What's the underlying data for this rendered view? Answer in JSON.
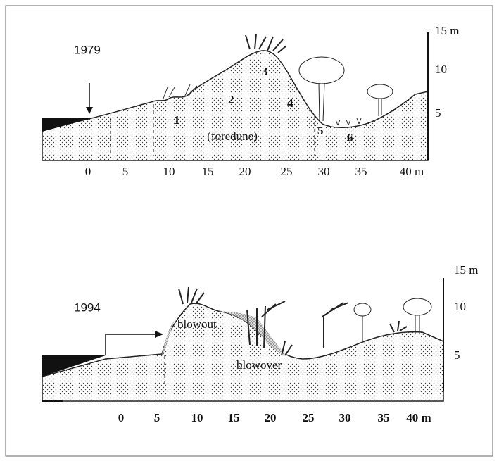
{
  "panels": [
    {
      "year": "1979",
      "y_labels": [
        "15 m",
        "10",
        "5"
      ],
      "x_labels": [
        "0",
        "5",
        "10",
        "15",
        "20",
        "25",
        "30",
        "35",
        "40 m"
      ],
      "zones": [
        "1",
        "2",
        "3",
        "4",
        "5",
        "6"
      ],
      "landform": "(foredune)"
    },
    {
      "year": "1994",
      "y_labels": [
        "15 m",
        "10",
        "5"
      ],
      "x_labels": [
        "0",
        "5",
        "10",
        "15",
        "20",
        "25",
        "30",
        "35",
        "40 m"
      ],
      "features": [
        "blowout",
        "blowover"
      ]
    }
  ]
}
